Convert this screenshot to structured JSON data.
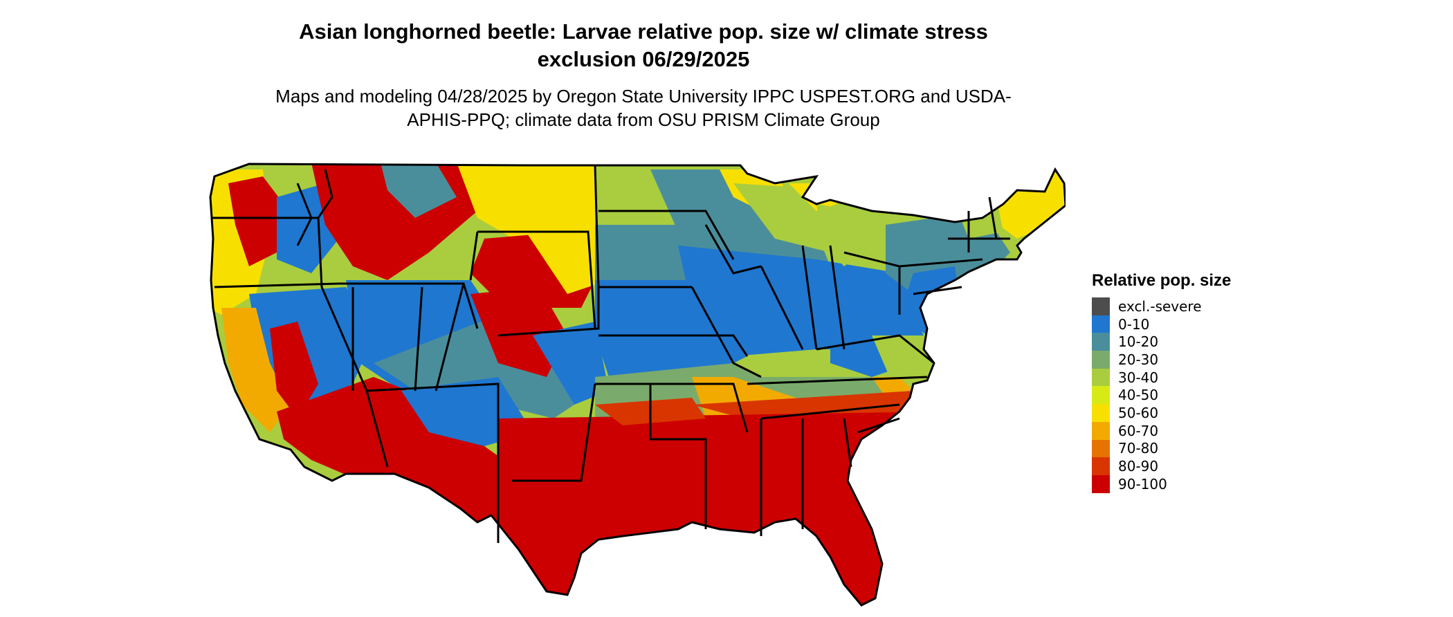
{
  "title": "Asian longhorned beetle: Larvae relative pop. size w/ climate stress exclusion 06/29/2025",
  "subtitle": "Maps and modeling 04/28/2025 by Oregon State University IPPC USPEST.ORG and USDA-APHIS-PPQ; climate data from OSU PRISM Climate Group",
  "legend": {
    "title": "Relative pop. size",
    "items": [
      {
        "label": "excl.-severe",
        "color": "#4d4d4d"
      },
      {
        "label": "0-10",
        "color": "#1f77d0"
      },
      {
        "label": "10-20",
        "color": "#4b8e9b"
      },
      {
        "label": "20-30",
        "color": "#7aab6c"
      },
      {
        "label": "30-40",
        "color": "#a9cd3e"
      },
      {
        "label": "40-50",
        "color": "#d8ea15"
      },
      {
        "label": "50-60",
        "color": "#f7e000"
      },
      {
        "label": "60-70",
        "color": "#f2aa00"
      },
      {
        "label": "70-80",
        "color": "#e67300"
      },
      {
        "label": "80-90",
        "color": "#d93500"
      },
      {
        "label": "90-100",
        "color": "#cc0000"
      }
    ]
  },
  "map": {
    "regions": [
      {
        "name": "pacific-northwest",
        "class": "30-40"
      },
      {
        "name": "northern-rockies",
        "class": "80-90"
      },
      {
        "name": "great-basin",
        "class": "0-10"
      },
      {
        "name": "california-coast",
        "class": "30-40"
      },
      {
        "name": "desert-southwest",
        "class": "90-100"
      },
      {
        "name": "colorado-plateau",
        "class": "10-20"
      },
      {
        "name": "southern-rockies",
        "class": "80-90"
      },
      {
        "name": "northern-plains",
        "class": "30-40"
      },
      {
        "name": "central-plains",
        "class": "10-20"
      },
      {
        "name": "corn-belt",
        "class": "0-10"
      },
      {
        "name": "upper-midwest",
        "class": "10-20"
      },
      {
        "name": "great-lakes-north",
        "class": "50-60"
      },
      {
        "name": "appalachians",
        "class": "0-10"
      },
      {
        "name": "northeast",
        "class": "10-20"
      },
      {
        "name": "northern-new-england",
        "class": "50-60"
      },
      {
        "name": "mid-south",
        "class": "60-70"
      },
      {
        "name": "southeast",
        "class": "90-100"
      },
      {
        "name": "south-central",
        "class": "90-100"
      }
    ]
  }
}
